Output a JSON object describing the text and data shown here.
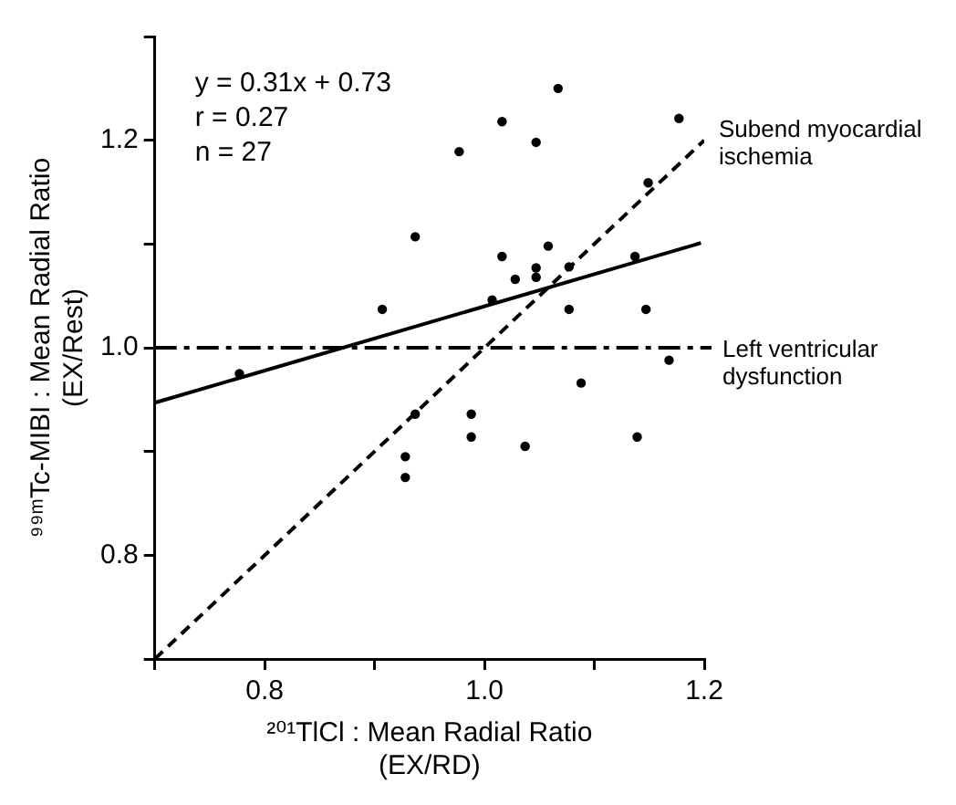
{
  "chart_data": {
    "type": "scatter",
    "xlabel": "²⁰¹TlCl : Mean Radial Ratio\n(EX/RD)",
    "ylabel": "⁹⁹ᵐTc-MIBI : Mean Radial Ratio\n(EX/Rest)",
    "annotations": [
      "y = 0.31x + 0.73",
      "r = 0.27",
      "n = 27"
    ],
    "series": [
      {
        "type": "scatter",
        "color": "#000000",
        "marker": "circle",
        "x": [
          1.067,
          1.016,
          1.047,
          0.977,
          0.937,
          1.016,
          1.058,
          1.028,
          1.047,
          1.047,
          1.007,
          1.077,
          0.907,
          0.777,
          0.988,
          0.988,
          1.037,
          0.928,
          0.928,
          0.937,
          1.177,
          1.149,
          1.137,
          1.077,
          1.147,
          1.168,
          1.088,
          1.139
        ],
        "values": [
          1.25,
          1.218,
          1.198,
          1.189,
          1.107,
          1.088,
          1.098,
          1.066,
          1.077,
          1.068,
          1.046,
          1.037,
          1.037,
          0.975,
          0.936,
          0.914,
          0.905,
          0.895,
          0.875,
          0.936,
          1.221,
          1.159,
          1.088,
          1.078,
          1.037,
          0.988,
          0.966,
          0.914
        ]
      },
      {
        "type": "line",
        "color": "#000000",
        "line_style": "solid",
        "marker": "none",
        "x": [
          0.7,
          1.197
        ],
        "values": [
          0.947,
          1.101
        ]
      },
      {
        "type": "line",
        "name": "Subend myocardial ischemia",
        "color": "#000000",
        "line_style": "dashed",
        "marker": "none",
        "x": [
          0.7,
          1.2
        ],
        "values": [
          0.7,
          1.2
        ]
      }
    ],
    "ref_lines": [
      {
        "axis": "y",
        "value": 1.0,
        "label": "Left ventricular dysfunction",
        "color": "#000000"
      }
    ],
    "xlim": [
      0.7,
      1.2
    ],
    "xticks": [
      {
        "value": 0.7,
        "label": null
      },
      {
        "value": 0.8,
        "label": "0.8"
      },
      {
        "value": 0.9,
        "label": null
      },
      {
        "value": 1.0,
        "label": "1.0"
      },
      {
        "value": 1.1,
        "label": null
      },
      {
        "value": 1.2,
        "label": "1.2"
      }
    ],
    "ylim": [
      0.7,
      1.3
    ],
    "yticks": [
      {
        "value": 0.7,
        "label": null
      },
      {
        "value": 0.8,
        "label": "0.8"
      },
      {
        "value": 0.9,
        "label": null
      },
      {
        "value": 1.0,
        "label": "1.0"
      },
      {
        "value": 1.1,
        "label": null
      },
      {
        "value": 1.2,
        "label": "1.2"
      },
      {
        "value": 1.3,
        "label": null
      }
    ],
    "grid": false,
    "legend": false
  }
}
